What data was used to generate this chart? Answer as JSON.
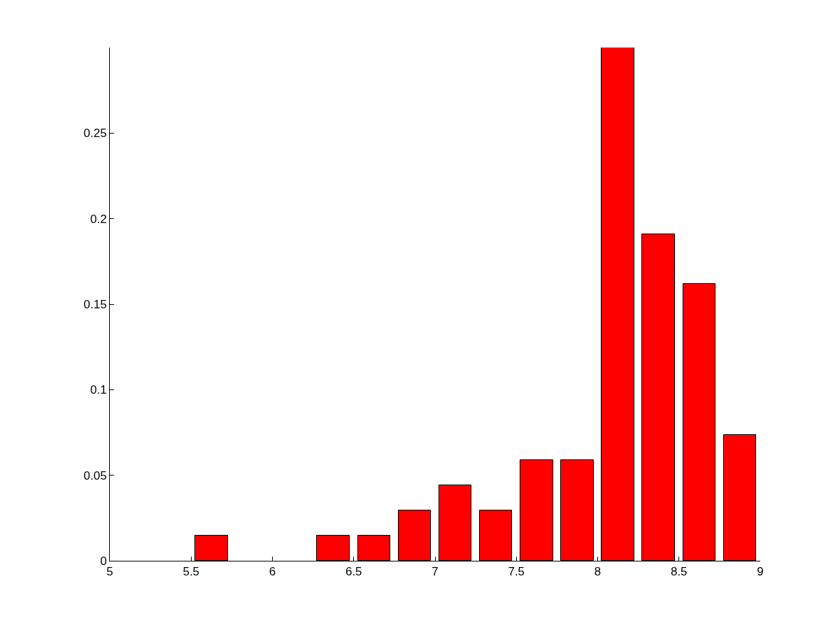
{
  "chart_data": {
    "type": "bar",
    "x": [
      5.125,
      5.375,
      5.625,
      5.875,
      6.125,
      6.375,
      6.625,
      6.875,
      7.125,
      7.375,
      7.625,
      7.875,
      8.125,
      8.375,
      8.625,
      8.875
    ],
    "values": [
      0,
      0,
      0.0147,
      0,
      0,
      0.0147,
      0.0147,
      0.0294,
      0.0441,
      0.0294,
      0.0588,
      0.0588,
      0.3,
      0.191,
      0.1618,
      0.0735
    ],
    "color": "#ff0000",
    "xlim": [
      5,
      9
    ],
    "xticks": [
      5,
      5.5,
      6,
      6.5,
      7,
      7.5,
      8,
      8.5,
      9
    ],
    "ylim": [
      0,
      0.3
    ],
    "yticks": [
      0,
      0.05,
      0.1,
      0.15,
      0.2,
      0.25
    ],
    "tick_labels": "xy"
  }
}
